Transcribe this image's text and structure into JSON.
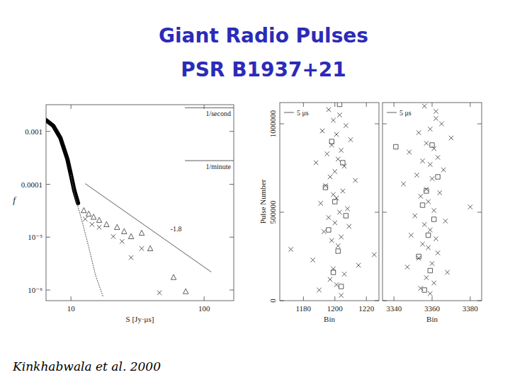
{
  "header": {
    "title": "Giant Radio Pulses",
    "subtitle": "PSR B1937+21"
  },
  "citation": "Kinkhabwala et al. 2000",
  "chart_data": [
    {
      "type": "line",
      "log": true,
      "grid": false,
      "xlim": [
        6.5,
        167
      ],
      "ylim": [
        6.3e-07,
        0.0032
      ],
      "xticks": [
        10,
        100
      ],
      "yticks": [
        0.001,
        0.0001,
        {
          "value": 1e-05,
          "label": "10⁻⁵"
        },
        {
          "value": 1e-06,
          "label": "10⁻⁶"
        }
      ],
      "x_label": "S [Jy·μs]",
      "y_label": "f",
      "series": [
        {
          "type": "line",
          "line_style": "solid",
          "color": "#000000",
          "x": [
            6.5,
            7.36,
            8.32,
            9.4,
            10,
            10.6,
            11.3
          ],
          "values": [
            0.00163,
            0.00128,
            0.00076,
            0.0003,
            0.00015,
            7.6e-05,
            4.4e-05
          ]
        },
        {
          "type": "line",
          "line_style": "dotted",
          "color": "#555555",
          "x": [
            10,
            10.6,
            12.0,
            13.6,
            15.3,
            17.4
          ],
          "values": [
            0.00015,
            6.5e-05,
            2.2e-05,
            6.5e-06,
            1.9e-06,
            7.6e-07
          ]
        },
        {
          "type": "scatter",
          "marker": "triangle",
          "color": "#333333",
          "x": [
            12.5,
            13.6,
            14.8,
            16.3,
            18.5,
            22.2,
            25.1,
            28.3,
            34.0,
            39.4,
            59,
            72.8
          ],
          "values": [
            3.2e-05,
            2.75e-05,
            2.4e-05,
            2.1e-05,
            1.74e-05,
            1.54e-05,
            1.28e-05,
            1.03e-05,
            1.2e-05,
            6.1e-06,
            1.74e-06,
            9.4e-07
          ]
        },
        {
          "type": "scatter",
          "marker": "x",
          "color": "#333333",
          "x": [
            12.8,
            14.4,
            16.3,
            20.8,
            24.2,
            28.3,
            34.0,
            46.2
          ],
          "values": [
            2.2e-05,
            1.74e-05,
            1.54e-05,
            1.03e-05,
            8.3e-06,
            4.1e-06,
            6.1e-06,
            8.9e-07
          ]
        }
      ],
      "reference_lines": [
        {
          "label": "1/second",
          "value": 0.0028
        },
        {
          "label": "1/minute",
          "value": 0.00028
        }
      ],
      "fit_line": {
        "label": "-1.8",
        "x": [
          12.8,
          113
        ],
        "y": [
          0.000103,
          2.2e-06
        ]
      }
    },
    {
      "type": "scatter",
      "grid": false,
      "xlim": [
        1165,
        1228
      ],
      "ylim": [
        0,
        1120000
      ],
      "xticks": [
        1180,
        1200,
        1220
      ],
      "yticks": [
        0,
        500000,
        1000000
      ],
      "x_label": "Bin",
      "y_label": "Pulse Number",
      "annotation": "5 μs",
      "series": [
        {
          "marker": "x",
          "color": "#333333",
          "x": [
            1196,
            1203,
            1199,
            1207,
            1192,
            1201,
            1210,
            1198,
            1204,
            1195,
            1202,
            1188,
            1206,
            1200,
            1197,
            1213,
            1194,
            1205,
            1199,
            1201,
            1191,
            1208,
            1203,
            1196,
            1200,
            1209,
            1193,
            1204,
            1198,
            1202,
            1172,
            1225,
            1186,
            1215,
            1199,
            1206,
            1197,
            1201,
            1190,
            1204
          ],
          "values": [
            1080000,
            1050000,
            1020000,
            990000,
            960000,
            940000,
            910000,
            880000,
            850000,
            830000,
            800000,
            780000,
            760000,
            730000,
            700000,
            680000,
            650000,
            620000,
            600000,
            580000,
            550000,
            520000,
            500000,
            470000,
            440000,
            420000,
            390000,
            360000,
            340000,
            310000,
            290000,
            260000,
            230000,
            200000,
            180000,
            150000,
            120000,
            90000,
            60000,
            30000
          ]
        },
        {
          "marker": "square",
          "color": "#333333",
          "x": [
            1203,
            1198,
            1205,
            1194,
            1200,
            1207,
            1196,
            1202,
            1199,
            1204
          ],
          "values": [
            1110000,
            900000,
            780000,
            640000,
            560000,
            480000,
            400000,
            280000,
            160000,
            80000
          ]
        }
      ]
    },
    {
      "type": "scatter",
      "grid": false,
      "tick_labels": "x",
      "xlim": [
        3334,
        3386
      ],
      "ylim": [
        0,
        1120000
      ],
      "xticks": [
        3340,
        3360,
        3380
      ],
      "yticks": [
        0,
        500000,
        1000000
      ],
      "x_label": "Bin",
      "annotation": "5 μs",
      "series": [
        {
          "marker": "x",
          "color": "#333333",
          "x": [
            3356,
            3362,
            3362,
            3365,
            3359,
            3353,
            3370,
            3357,
            3361,
            3348,
            3363,
            3355,
            3359,
            3366,
            3352,
            3360,
            3345,
            3357,
            3364,
            3354,
            3358,
            3380,
            3361,
            3351,
            3367,
            3356,
            3359,
            3349,
            3362,
            3355,
            3358,
            3363,
            3353,
            3360,
            3347,
            3368,
            3357,
            3361,
            3354,
            3359
          ],
          "values": [
            1100000,
            1070000,
            1030000,
            1000000,
            970000,
            950000,
            920000,
            890000,
            860000,
            840000,
            810000,
            790000,
            770000,
            740000,
            710000,
            690000,
            660000,
            630000,
            610000,
            590000,
            560000,
            530000,
            510000,
            480000,
            450000,
            430000,
            400000,
            370000,
            350000,
            320000,
            300000,
            270000,
            240000,
            210000,
            190000,
            160000,
            130000,
            100000,
            70000,
            40000
          ]
        },
        {
          "marker": "square",
          "color": "#333333",
          "x": [
            3341,
            3360,
            3363,
            3357,
            3355,
            3361,
            3358,
            3353,
            3359,
            3356
          ],
          "values": [
            870000,
            880000,
            700000,
            620000,
            540000,
            460000,
            370000,
            250000,
            170000,
            60000
          ]
        }
      ]
    }
  ]
}
